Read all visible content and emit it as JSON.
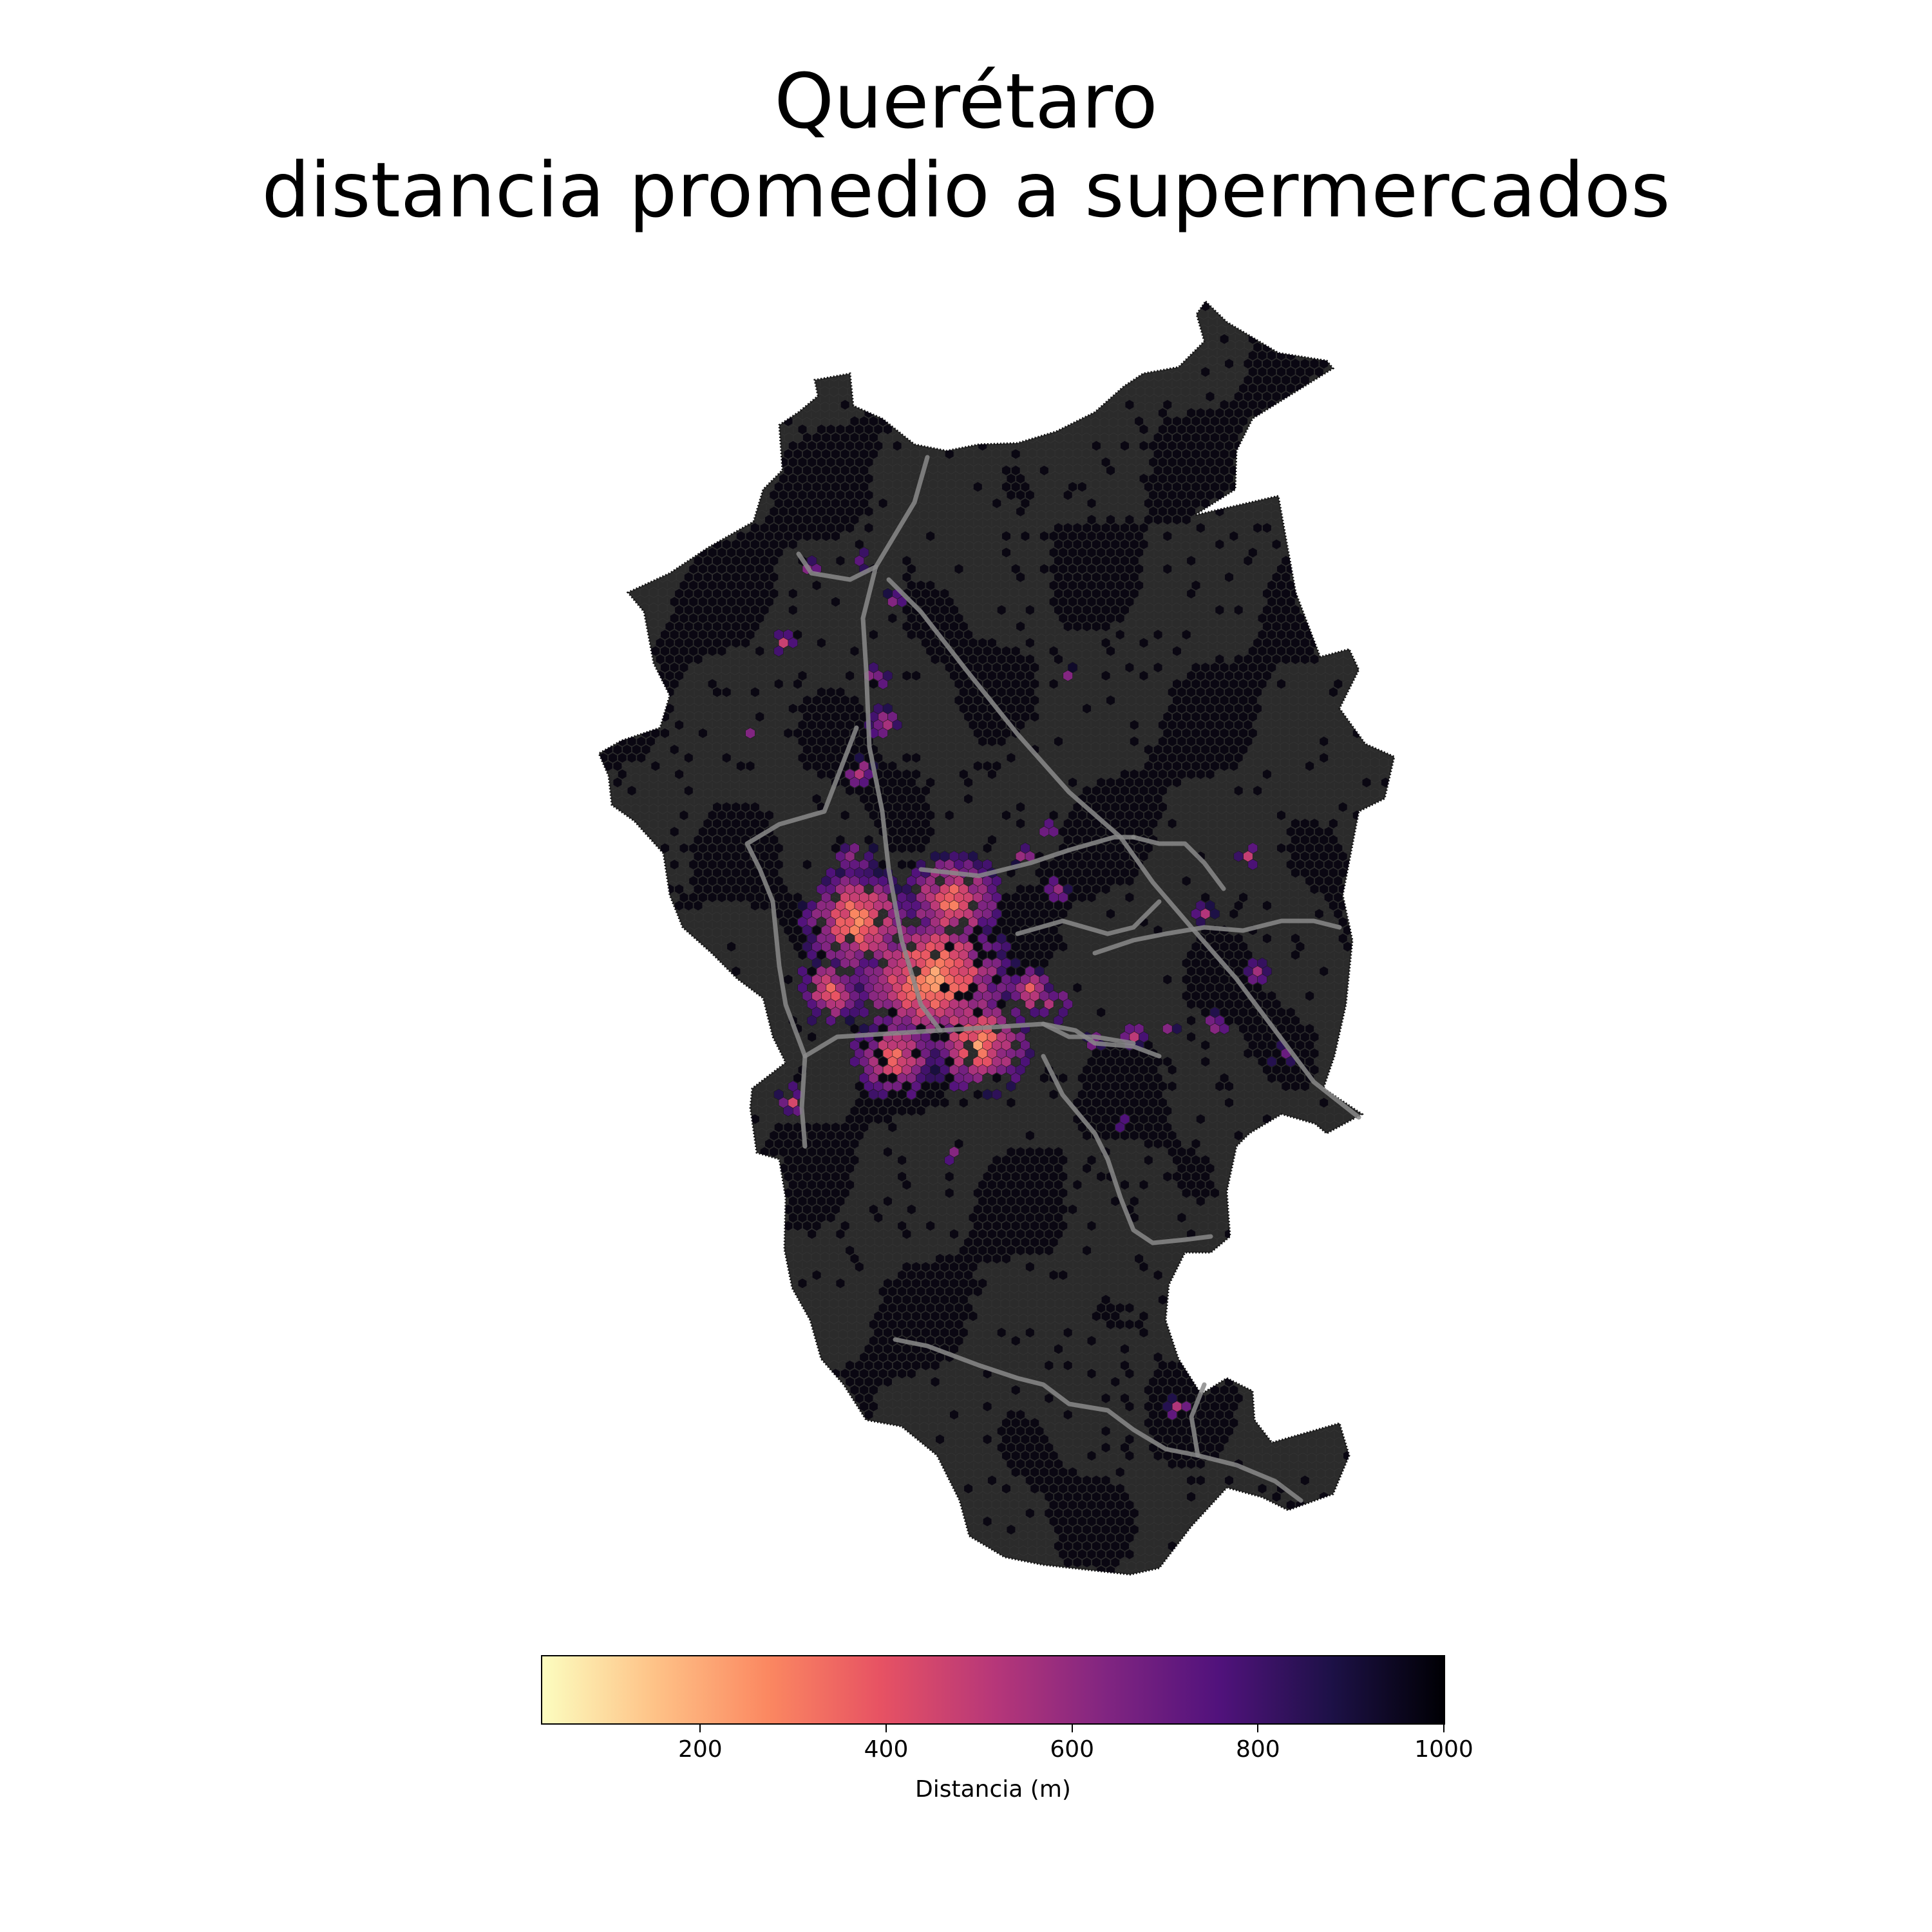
{
  "title": {
    "line1": "Querétaro",
    "line2": "distancia promedio a supermercados"
  },
  "colors": {
    "background": "#ffffff",
    "region_fill": "#2b2b2b",
    "region_outline": "#1a1a1a",
    "sparse_hex": "#0a0712",
    "roads": "#8a8a8a"
  },
  "colorbar": {
    "colormap": "magma_r",
    "stops": [
      "#fcfdbf",
      "#fec287",
      "#fb8861",
      "#e75263",
      "#b73779",
      "#812581",
      "#51127c",
      "#1d1147",
      "#000004"
    ],
    "vmin": 30,
    "vmax": 1000,
    "ticks": [
      200,
      400,
      600,
      800,
      1000
    ],
    "tick_labels": [
      "200",
      "400",
      "600",
      "800",
      "1000"
    ],
    "label": "Distancia (m)"
  }
}
